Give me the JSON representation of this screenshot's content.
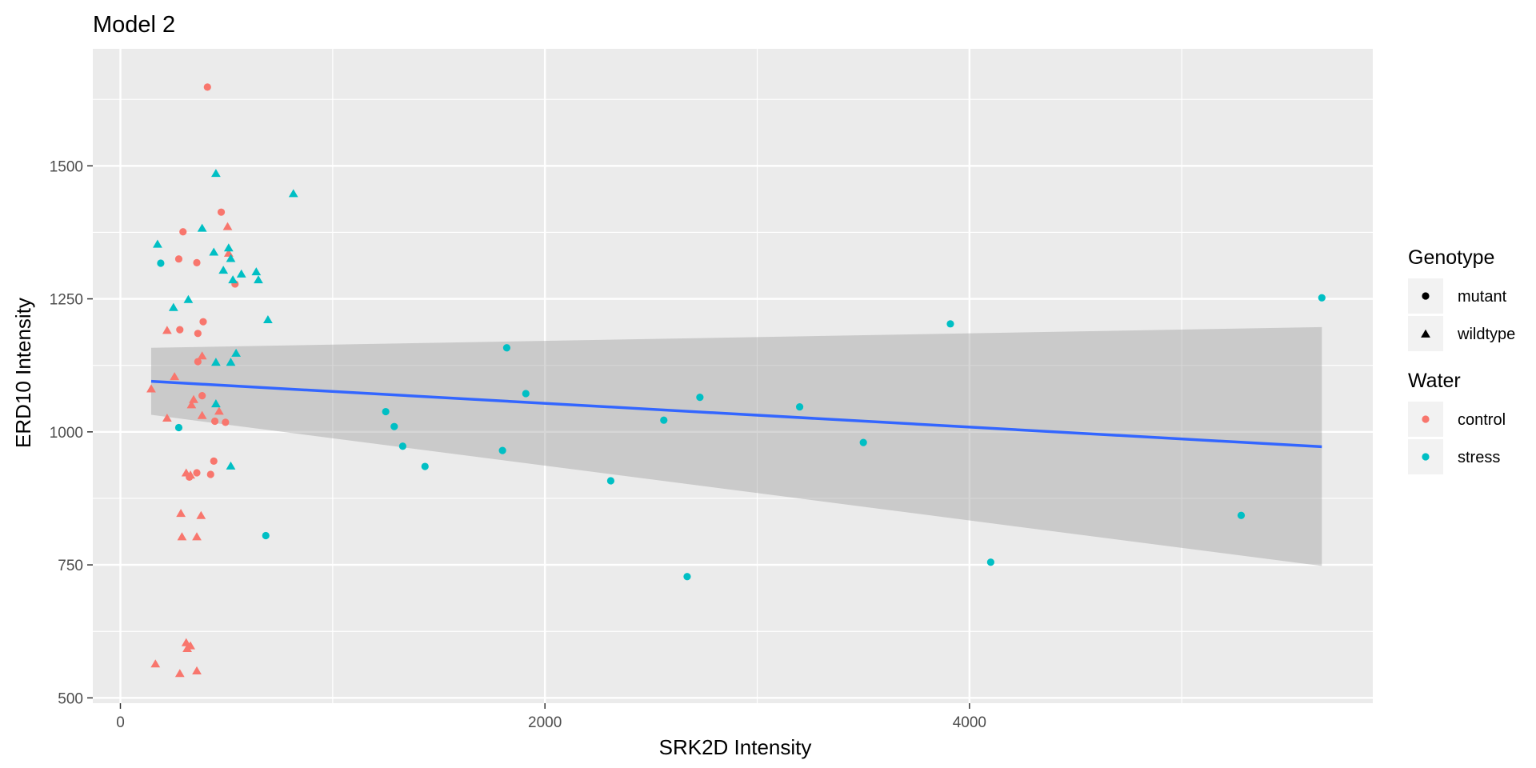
{
  "chart_data": {
    "type": "scatter",
    "title": "Model 2",
    "xlabel": "SRK2D Intensity",
    "ylabel": "ERD10 Intensity",
    "xlim": [
      -130,
      5900
    ],
    "ylim": [
      490,
      1720
    ],
    "x_ticks": [
      0,
      2000,
      4000
    ],
    "x_tick_labels": [
      "0",
      "2000",
      "4000"
    ],
    "y_ticks": [
      500,
      750,
      1000,
      1250,
      1500
    ],
    "y_tick_labels": [
      "500",
      "750",
      "1000",
      "1250",
      "1500"
    ],
    "grid": true,
    "legend": {
      "placement": "right",
      "groups": [
        {
          "title": "Genotype",
          "entries": [
            {
              "label": "mutant",
              "shape": "circle"
            },
            {
              "label": "wildtype",
              "shape": "triangle"
            }
          ]
        },
        {
          "title": "Water",
          "entries": [
            {
              "label": "control",
              "color": "#F8766D"
            },
            {
              "label": "stress",
              "color": "#00BFC4"
            }
          ]
        }
      ]
    },
    "colors": {
      "control": "#F8766D",
      "stress": "#00BFC4",
      "fit_line": "#3366FF",
      "confidence_band": "#999999",
      "panel": "#EBEBEB",
      "grid": "#FFFFFF"
    },
    "points": [
      {
        "x": 410,
        "y": 1648,
        "genotype": "mutant",
        "water": "control"
      },
      {
        "x": 475,
        "y": 1413,
        "genotype": "mutant",
        "water": "control"
      },
      {
        "x": 295,
        "y": 1376,
        "genotype": "mutant",
        "water": "control"
      },
      {
        "x": 275,
        "y": 1325,
        "genotype": "mutant",
        "water": "control"
      },
      {
        "x": 360,
        "y": 1318,
        "genotype": "mutant",
        "water": "control"
      },
      {
        "x": 540,
        "y": 1278,
        "genotype": "mutant",
        "water": "control"
      },
      {
        "x": 390,
        "y": 1207,
        "genotype": "mutant",
        "water": "control"
      },
      {
        "x": 280,
        "y": 1192,
        "genotype": "mutant",
        "water": "control"
      },
      {
        "x": 365,
        "y": 1185,
        "genotype": "mutant",
        "water": "control"
      },
      {
        "x": 365,
        "y": 1132,
        "genotype": "mutant",
        "water": "control"
      },
      {
        "x": 385,
        "y": 1068,
        "genotype": "mutant",
        "water": "control"
      },
      {
        "x": 445,
        "y": 1020,
        "genotype": "mutant",
        "water": "control"
      },
      {
        "x": 495,
        "y": 1018,
        "genotype": "mutant",
        "water": "control"
      },
      {
        "x": 440,
        "y": 945,
        "genotype": "mutant",
        "water": "control"
      },
      {
        "x": 360,
        "y": 923,
        "genotype": "mutant",
        "water": "control"
      },
      {
        "x": 425,
        "y": 920,
        "genotype": "mutant",
        "water": "control"
      },
      {
        "x": 325,
        "y": 915,
        "genotype": "mutant",
        "water": "control"
      },
      {
        "x": 505,
        "y": 1385,
        "genotype": "wildtype",
        "water": "control"
      },
      {
        "x": 510,
        "y": 1335,
        "genotype": "wildtype",
        "water": "control"
      },
      {
        "x": 220,
        "y": 1190,
        "genotype": "wildtype",
        "water": "control"
      },
      {
        "x": 385,
        "y": 1142,
        "genotype": "wildtype",
        "water": "control"
      },
      {
        "x": 255,
        "y": 1103,
        "genotype": "wildtype",
        "water": "control"
      },
      {
        "x": 145,
        "y": 1080,
        "genotype": "wildtype",
        "water": "control"
      },
      {
        "x": 345,
        "y": 1060,
        "genotype": "wildtype",
        "water": "control"
      },
      {
        "x": 335,
        "y": 1050,
        "genotype": "wildtype",
        "water": "control"
      },
      {
        "x": 465,
        "y": 1038,
        "genotype": "wildtype",
        "water": "control"
      },
      {
        "x": 385,
        "y": 1030,
        "genotype": "wildtype",
        "water": "control"
      },
      {
        "x": 220,
        "y": 1025,
        "genotype": "wildtype",
        "water": "control"
      },
      {
        "x": 310,
        "y": 922,
        "genotype": "wildtype",
        "water": "control"
      },
      {
        "x": 330,
        "y": 918,
        "genotype": "wildtype",
        "water": "control"
      },
      {
        "x": 285,
        "y": 846,
        "genotype": "wildtype",
        "water": "control"
      },
      {
        "x": 380,
        "y": 842,
        "genotype": "wildtype",
        "water": "control"
      },
      {
        "x": 290,
        "y": 802,
        "genotype": "wildtype",
        "water": "control"
      },
      {
        "x": 360,
        "y": 802,
        "genotype": "wildtype",
        "water": "control"
      },
      {
        "x": 310,
        "y": 603,
        "genotype": "wildtype",
        "water": "control"
      },
      {
        "x": 330,
        "y": 597,
        "genotype": "wildtype",
        "water": "control"
      },
      {
        "x": 315,
        "y": 592,
        "genotype": "wildtype",
        "water": "control"
      },
      {
        "x": 165,
        "y": 563,
        "genotype": "wildtype",
        "water": "control"
      },
      {
        "x": 360,
        "y": 550,
        "genotype": "wildtype",
        "water": "control"
      },
      {
        "x": 280,
        "y": 545,
        "genotype": "wildtype",
        "water": "control"
      },
      {
        "x": 190,
        "y": 1317,
        "genotype": "mutant",
        "water": "stress"
      },
      {
        "x": 275,
        "y": 1008,
        "genotype": "mutant",
        "water": "stress"
      },
      {
        "x": 685,
        "y": 805,
        "genotype": "mutant",
        "water": "stress"
      },
      {
        "x": 1820,
        "y": 1158,
        "genotype": "mutant",
        "water": "stress"
      },
      {
        "x": 1910,
        "y": 1072,
        "genotype": "mutant",
        "water": "stress"
      },
      {
        "x": 1250,
        "y": 1038,
        "genotype": "mutant",
        "water": "stress"
      },
      {
        "x": 1290,
        "y": 1010,
        "genotype": "mutant",
        "water": "stress"
      },
      {
        "x": 1330,
        "y": 973,
        "genotype": "mutant",
        "water": "stress"
      },
      {
        "x": 1435,
        "y": 935,
        "genotype": "mutant",
        "water": "stress"
      },
      {
        "x": 1800,
        "y": 965,
        "genotype": "mutant",
        "water": "stress"
      },
      {
        "x": 2310,
        "y": 908,
        "genotype": "mutant",
        "water": "stress"
      },
      {
        "x": 2560,
        "y": 1022,
        "genotype": "mutant",
        "water": "stress"
      },
      {
        "x": 2730,
        "y": 1065,
        "genotype": "mutant",
        "water": "stress"
      },
      {
        "x": 2670,
        "y": 728,
        "genotype": "mutant",
        "water": "stress"
      },
      {
        "x": 3200,
        "y": 1047,
        "genotype": "mutant",
        "water": "stress"
      },
      {
        "x": 3500,
        "y": 980,
        "genotype": "mutant",
        "water": "stress"
      },
      {
        "x": 3910,
        "y": 1203,
        "genotype": "mutant",
        "water": "stress"
      },
      {
        "x": 4100,
        "y": 755,
        "genotype": "mutant",
        "water": "stress"
      },
      {
        "x": 5280,
        "y": 843,
        "genotype": "mutant",
        "water": "stress"
      },
      {
        "x": 5660,
        "y": 1252,
        "genotype": "mutant",
        "water": "stress"
      },
      {
        "x": 450,
        "y": 1485,
        "genotype": "wildtype",
        "water": "stress"
      },
      {
        "x": 815,
        "y": 1447,
        "genotype": "wildtype",
        "water": "stress"
      },
      {
        "x": 385,
        "y": 1382,
        "genotype": "wildtype",
        "water": "stress"
      },
      {
        "x": 175,
        "y": 1352,
        "genotype": "wildtype",
        "water": "stress"
      },
      {
        "x": 510,
        "y": 1345,
        "genotype": "wildtype",
        "water": "stress"
      },
      {
        "x": 440,
        "y": 1337,
        "genotype": "wildtype",
        "water": "stress"
      },
      {
        "x": 520,
        "y": 1325,
        "genotype": "wildtype",
        "water": "stress"
      },
      {
        "x": 485,
        "y": 1303,
        "genotype": "wildtype",
        "water": "stress"
      },
      {
        "x": 640,
        "y": 1300,
        "genotype": "wildtype",
        "water": "stress"
      },
      {
        "x": 570,
        "y": 1296,
        "genotype": "wildtype",
        "water": "stress"
      },
      {
        "x": 530,
        "y": 1285,
        "genotype": "wildtype",
        "water": "stress"
      },
      {
        "x": 650,
        "y": 1285,
        "genotype": "wildtype",
        "water": "stress"
      },
      {
        "x": 320,
        "y": 1248,
        "genotype": "wildtype",
        "water": "stress"
      },
      {
        "x": 250,
        "y": 1233,
        "genotype": "wildtype",
        "water": "stress"
      },
      {
        "x": 695,
        "y": 1210,
        "genotype": "wildtype",
        "water": "stress"
      },
      {
        "x": 545,
        "y": 1147,
        "genotype": "wildtype",
        "water": "stress"
      },
      {
        "x": 450,
        "y": 1130,
        "genotype": "wildtype",
        "water": "stress"
      },
      {
        "x": 520,
        "y": 1130,
        "genotype": "wildtype",
        "water": "stress"
      },
      {
        "x": 450,
        "y": 1052,
        "genotype": "wildtype",
        "water": "stress"
      },
      {
        "x": 520,
        "y": 935,
        "genotype": "wildtype",
        "water": "stress"
      }
    ],
    "fit": {
      "method": "lm",
      "x": [
        145,
        5660
      ],
      "y": [
        1095,
        972
      ],
      "ci_lower": [
        1032,
        748
      ],
      "ci_upper": [
        1158,
        1197
      ]
    }
  }
}
